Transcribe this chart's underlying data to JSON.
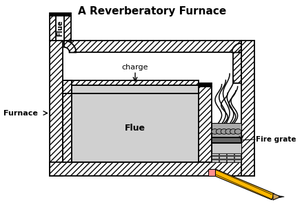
{
  "title": "A Reverberatory Furnace",
  "title_fontsize": 11,
  "bg_color": "#ffffff",
  "label_furnace": "Furnace",
  "label_flue_side": "Flue",
  "label_flue_bottom": "Flue",
  "label_charge": "charge",
  "label_firegrate": "Fire grate",
  "hatch": "////",
  "gray_light": "#d0d0d0",
  "gray_medium": "#aaaaaa",
  "pencil_body": "#FFB800",
  "pencil_tip": "#c8a060",
  "pencil_eraser": "#ff9090",
  "pencil_point": "#222222"
}
